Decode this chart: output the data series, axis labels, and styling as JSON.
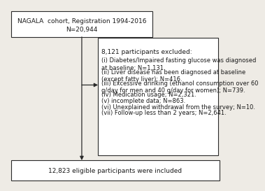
{
  "top_box": {
    "line1": "NAGALA  cohort, Registration 1994-2016",
    "line2": "N=20,944"
  },
  "exclusion_box": {
    "title": "8,121 participants excluded:",
    "items": [
      "(i) Diabetes/Impaired fasting glucose was diagnosed\nat baseline; N=1,131.",
      "(ii) Liver disease has been diagnosed at baseline\n(except fatty liver); N=416.",
      "(iii) Excessive drinking (ethanol consumption over 60\ng/day for men and 40 g/day for women); N=739.",
      "(iv) Medication usage; N=2,321.",
      "(v) incomplete data; N=863.",
      "(vi) Unexplained withdrawal from the survey; N=10.",
      "(vii) Follow-up less than 2 years; N=2,641."
    ]
  },
  "bottom_box": {
    "text": "12,823 eligible participants were included"
  },
  "bg_color": "#eeebe5",
  "box_color": "#ffffff",
  "line_color": "#2a2a2a",
  "text_color": "#1a1a1a",
  "fontsize": 6.5
}
